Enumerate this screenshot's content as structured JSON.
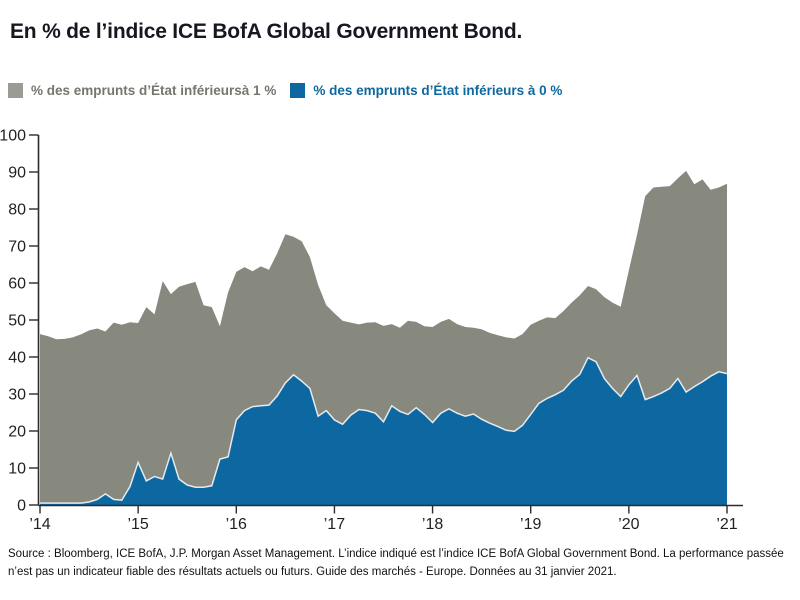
{
  "title": {
    "text": "En % de l’indice ICE BofA Global Government Bond."
  },
  "legend": {
    "items": [
      {
        "label": "% des emprunts d’État inférieursà 1 %",
        "color": "#9a9b93",
        "text_color": "#75766e"
      },
      {
        "label": "% des emprunts d’État inférieurs à 0 %",
        "color": "#0d68a1",
        "text_color": "#0d68a1"
      }
    ]
  },
  "chart_data": {
    "type": "area",
    "title": "En % de l’indice ICE BofA Global Government Bond.",
    "x_unit": "month",
    "x_start": "2014-01",
    "x_end": "2021-01",
    "x_tick_labels": [
      "’14",
      "’15",
      "’16",
      "’17",
      "’18",
      "’19",
      "’20",
      "’21"
    ],
    "ylim": [
      0,
      100
    ],
    "y_tick_step": 10,
    "y_tick_labels": [
      "0",
      "10",
      "20",
      "30",
      "40",
      "50",
      "60",
      "70",
      "80",
      "90",
      "100"
    ],
    "grid": false,
    "legend_position": "top-left",
    "background": "#ffffff",
    "axis_color": "#2b2b2b",
    "boundary_line_color": "#ffffff",
    "series": [
      {
        "name": "% des emprunts d’État inférieursà 1 %",
        "color": "#87897f",
        "values": [
          46.2,
          45.6,
          44.8,
          44.9,
          45.3,
          46.1,
          47.2,
          47.7,
          46.9,
          49.3,
          48.7,
          49.4,
          49.2,
          53.5,
          51.5,
          60.5,
          57.0,
          59.0,
          59.7,
          60.3,
          54.0,
          53.5,
          48.3,
          57.5,
          63.0,
          64.3,
          63.2,
          64.5,
          63.6,
          68.0,
          73.2,
          72.5,
          71.3,
          67.0,
          59.5,
          54.0,
          51.8,
          49.8,
          49.3,
          48.8,
          49.3,
          49.4,
          48.4,
          48.9,
          47.9,
          49.8,
          49.5,
          48.3,
          48.1,
          49.5,
          50.3,
          48.9,
          48.1,
          47.9,
          47.5,
          46.5,
          45.9,
          45.3,
          45.0,
          46.2,
          48.7,
          49.8,
          50.7,
          50.5,
          52.4,
          54.7,
          56.7,
          59.2,
          58.3,
          56.2,
          54.7,
          53.6,
          63.5,
          73.0,
          83.5,
          85.8,
          86.0,
          86.2,
          88.3,
          90.3,
          86.7,
          88.0,
          85.2,
          85.8,
          86.8
        ]
      },
      {
        "name": "% des emprunts d’État inférieurs à 0 %",
        "color": "#0d68a1",
        "values": [
          0.5,
          0.5,
          0.5,
          0.5,
          0.5,
          0.5,
          0.8,
          1.5,
          3.0,
          1.5,
          1.3,
          5.0,
          11.5,
          6.5,
          7.7,
          7.0,
          14.0,
          7.0,
          5.4,
          4.8,
          4.8,
          5.2,
          12.4,
          13.0,
          23.0,
          25.5,
          26.6,
          26.8,
          27.0,
          29.5,
          33.0,
          35.2,
          33.5,
          31.5,
          24.0,
          25.5,
          23.0,
          21.8,
          24.3,
          25.8,
          25.5,
          24.8,
          22.5,
          26.8,
          25.3,
          24.5,
          26.3,
          24.5,
          22.3,
          24.8,
          26.0,
          24.8,
          24.0,
          24.6,
          23.2,
          22.1,
          21.2,
          20.2,
          19.9,
          21.5,
          24.5,
          27.5,
          28.8,
          29.8,
          31.0,
          33.5,
          35.3,
          39.8,
          38.7,
          34.2,
          31.5,
          29.3,
          32.5,
          35.0,
          28.5,
          29.3,
          30.3,
          31.5,
          34.2,
          30.5,
          32.0,
          33.3,
          34.8,
          36.0,
          35.5
        ]
      }
    ]
  },
  "footer": {
    "text": "Source : Bloomberg, ICE BofA, J.P. Morgan Asset Management. L’indice indiqué est l’indice ICE BofA Global Government Bond. La performance passée n’est pas un indicateur fiable des résultats actuels ou futurs. Guide des marchés - Europe. Données au 31 janvier 2021."
  }
}
